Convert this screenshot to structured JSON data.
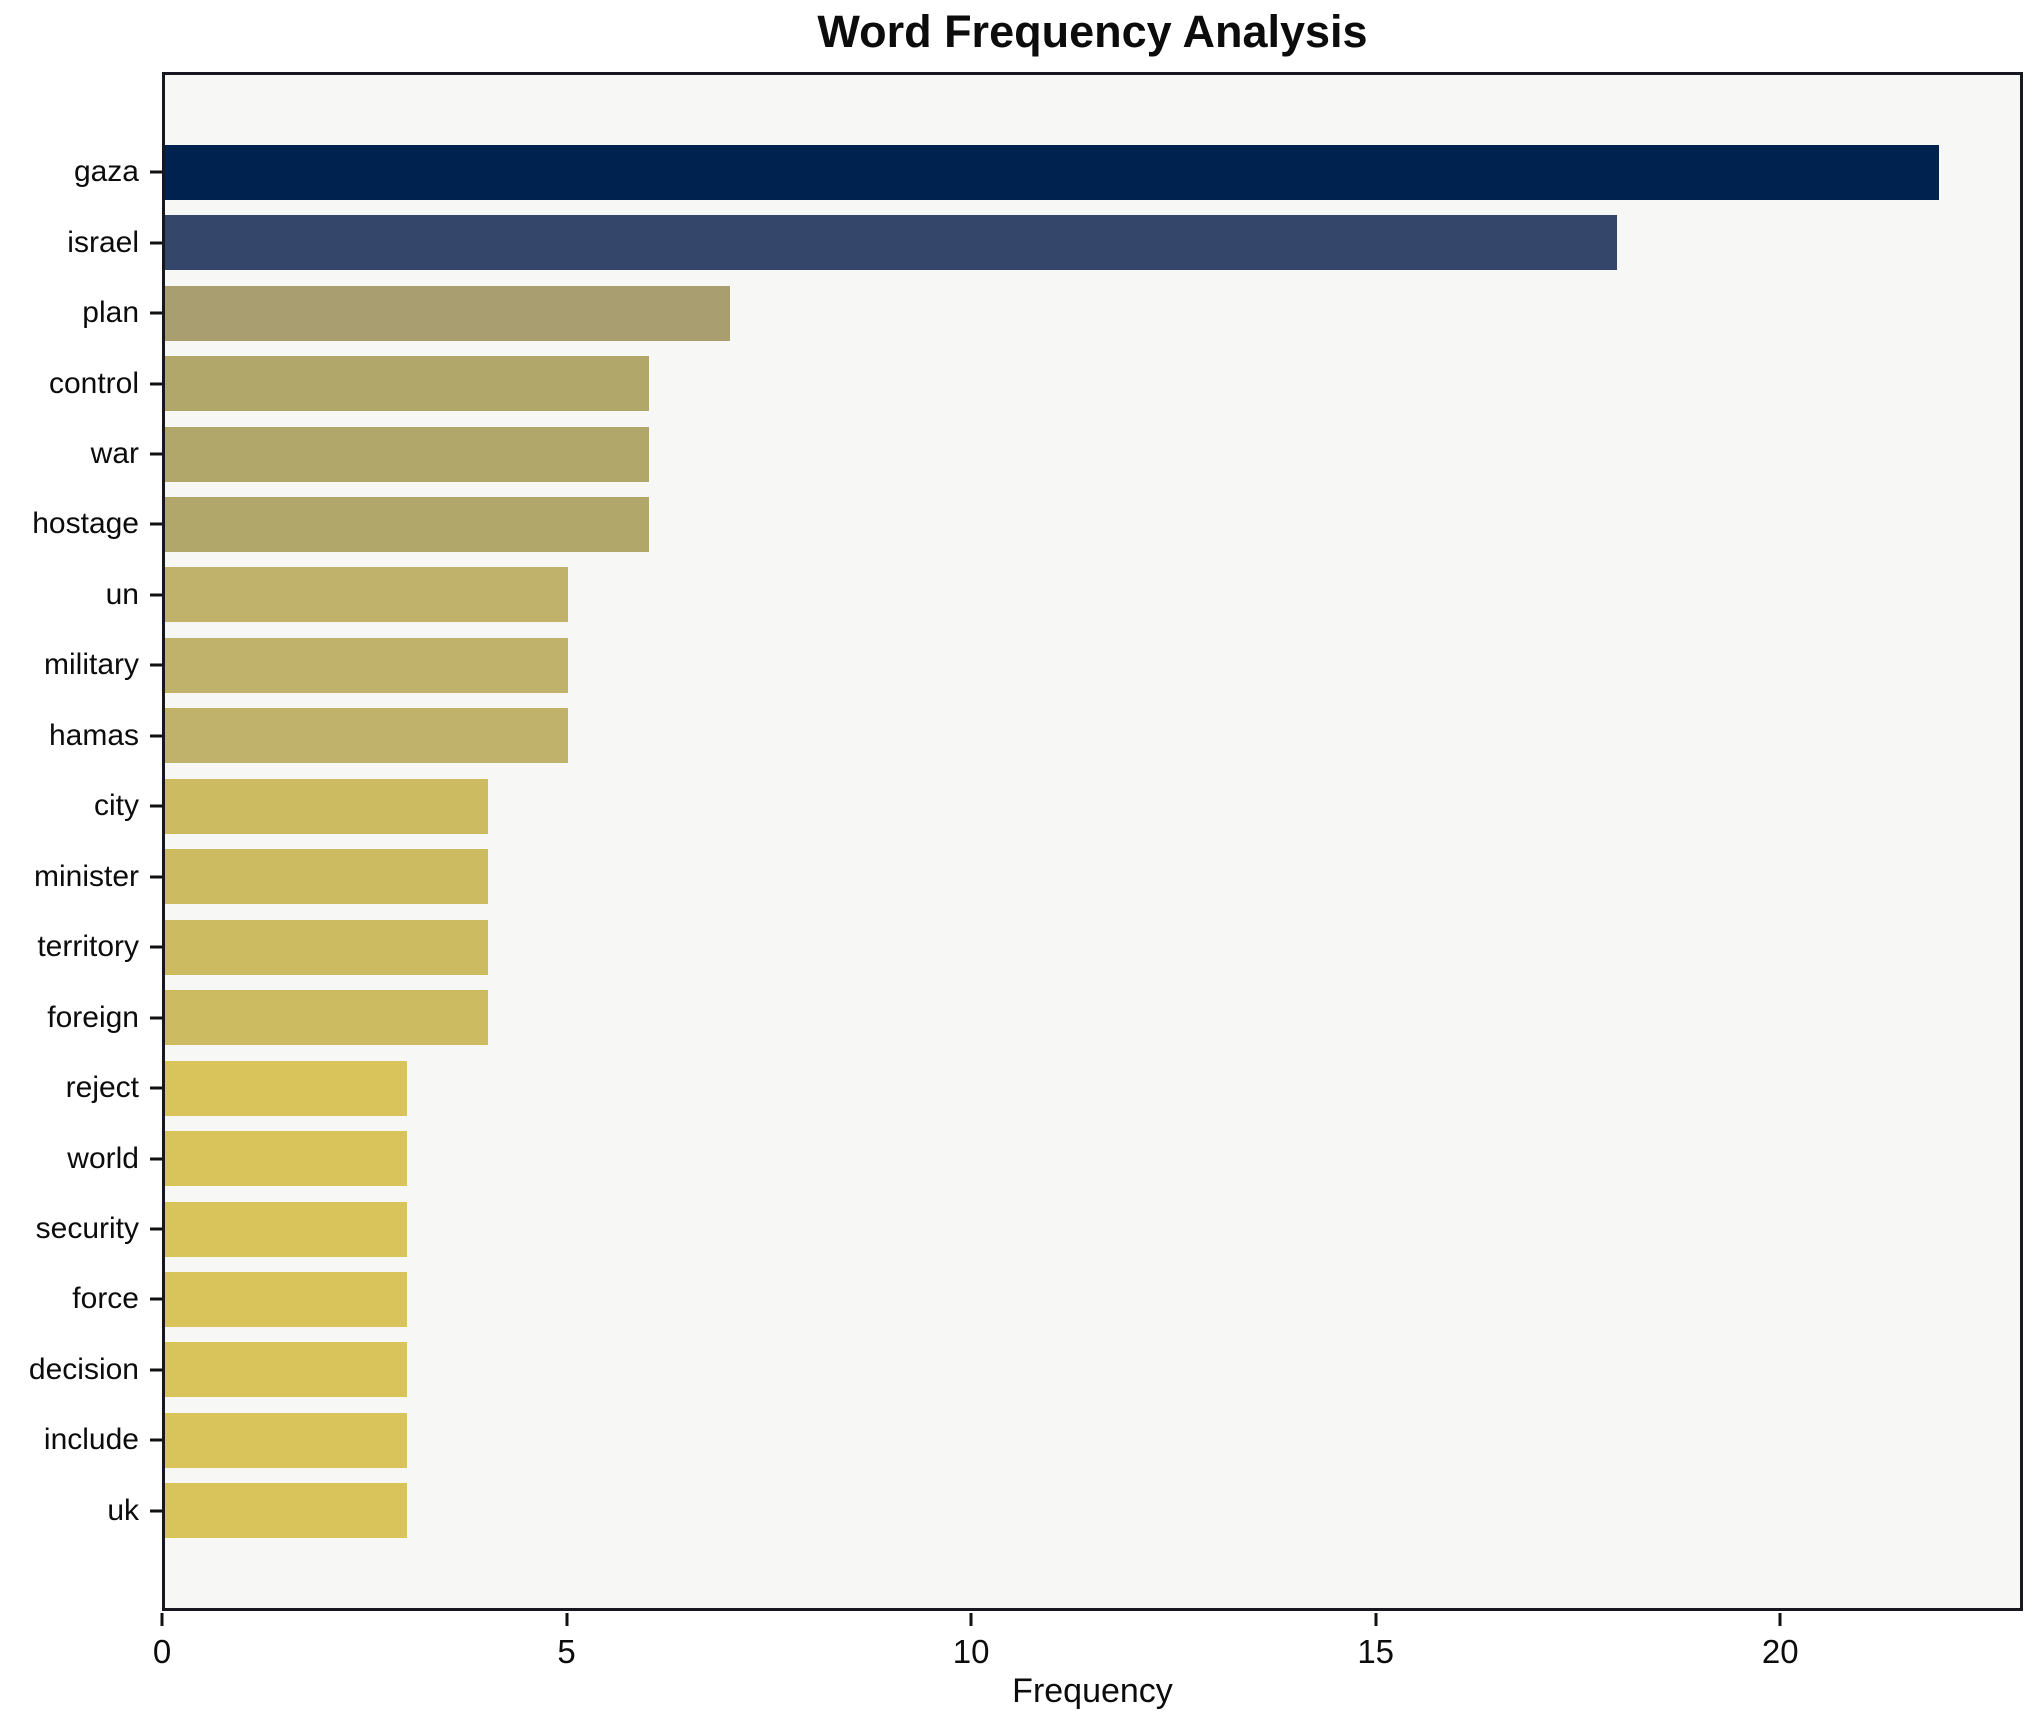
{
  "figure": {
    "background": "#ffffff",
    "plot_background": "#f7f7f6",
    "spine_color": "#17171f",
    "text_color": "#0c0c0c"
  },
  "chart_data": {
    "type": "bar",
    "orientation": "horizontal",
    "title": "Word Frequency Analysis",
    "xlabel": "Frequency",
    "ylabel": "",
    "categories": [
      "gaza",
      "israel",
      "plan",
      "control",
      "war",
      "hostage",
      "un",
      "military",
      "hamas",
      "city",
      "minister",
      "territory",
      "foreign",
      "reject",
      "world",
      "security",
      "force",
      "decision",
      "include",
      "uk"
    ],
    "values": [
      22,
      18,
      7,
      6,
      6,
      6,
      5,
      5,
      5,
      4,
      4,
      4,
      4,
      3,
      3,
      3,
      3,
      3,
      3,
      3
    ],
    "bar_colors": [
      "#00224e",
      "#35466b",
      "#a89e70",
      "#b1a76b",
      "#b1a76b",
      "#b1a76b",
      "#c0b26a",
      "#c0b26a",
      "#c0b26a",
      "#ccbb60",
      "#ccbb60",
      "#ccbb60",
      "#ccbb60",
      "#d9c45c",
      "#d9c45c",
      "#d9c45c",
      "#d9c45c",
      "#d9c45c",
      "#d9c45c",
      "#d9c45c"
    ],
    "xlim": [
      0,
      23
    ],
    "xticks": [
      0,
      5,
      10,
      15,
      20
    ],
    "grid": false,
    "legend": null
  }
}
